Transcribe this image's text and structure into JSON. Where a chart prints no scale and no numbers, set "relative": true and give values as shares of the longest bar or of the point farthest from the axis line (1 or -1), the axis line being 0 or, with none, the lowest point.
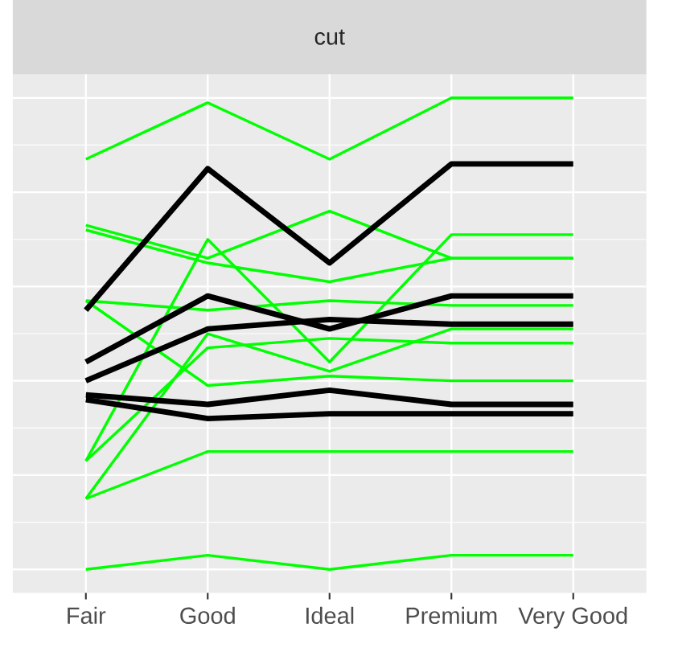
{
  "chart_data": {
    "type": "line",
    "title": "cut",
    "relative": true,
    "grid": true,
    "tick_labels": "x",
    "categories": [
      "Fair",
      "Good",
      "Ideal",
      "Premium",
      "Very Good"
    ],
    "series": [
      {
        "color": "#00ff00",
        "values": [
          0.87,
          0.99,
          0.87,
          1,
          1
        ]
      },
      {
        "color": "#00ff00",
        "values": [
          0.73,
          0.66,
          0.76,
          0.66,
          0.66
        ]
      },
      {
        "color": "#00ff00",
        "values": [
          0.72,
          0.65,
          0.61,
          0.66,
          0.66
        ]
      },
      {
        "color": "#00ff00",
        "values": [
          0.57,
          0.55,
          0.57,
          0.56,
          0.56
        ]
      },
      {
        "color": "#00ff00",
        "values": [
          0.57,
          0.39,
          0.41,
          0.4,
          0.4
        ]
      },
      {
        "color": "#00ff00",
        "values": [
          0.23,
          0.7,
          0.44,
          0.71,
          0.71
        ]
      },
      {
        "color": "#00ff00",
        "values": [
          0.23,
          0.47,
          0.49,
          0.48,
          0.48
        ]
      },
      {
        "color": "#00ff00",
        "values": [
          0.15,
          0.5,
          0.42,
          0.51,
          0.51
        ]
      },
      {
        "color": "#00ff00",
        "values": [
          0.15,
          0.25,
          0.25,
          0.25,
          0.25
        ]
      },
      {
        "color": "#00ff00",
        "values": [
          0,
          0.03,
          0.0,
          0.03,
          0.03
        ]
      },
      {
        "color": "#000000",
        "values": [
          0.55,
          0.85,
          0.65,
          0.86,
          0.86
        ]
      },
      {
        "color": "#000000",
        "values": [
          0.44,
          0.58,
          0.51,
          0.58,
          0.58
        ]
      },
      {
        "color": "#000000",
        "values": [
          0.4,
          0.51,
          0.53,
          0.52,
          0.52
        ]
      },
      {
        "color": "#000000",
        "values": [
          0.37,
          0.35,
          0.38,
          0.35,
          0.35
        ]
      },
      {
        "color": "#000000",
        "values": [
          0.36,
          0.32,
          0.33,
          0.33,
          0.33
        ]
      }
    ]
  }
}
